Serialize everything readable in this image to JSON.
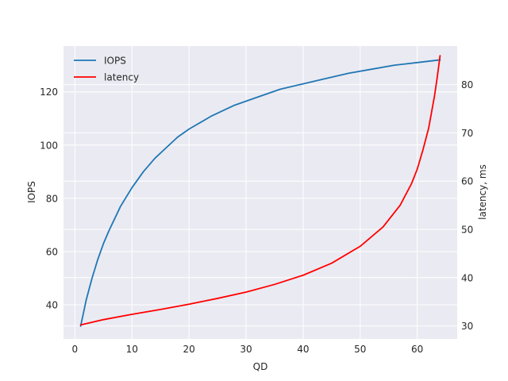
{
  "chart_data": {
    "type": "line",
    "title": "",
    "xlabel": "QD",
    "ylabel": "IOPS",
    "y2label": "latency, ms",
    "xlim": [
      -2,
      67
    ],
    "ylim": [
      27.2,
      137.2
    ],
    "y2lim": [
      27.3,
      88.0
    ],
    "xticks": [
      0,
      10,
      20,
      30,
      40,
      50,
      60
    ],
    "yticks": [
      40,
      60,
      80,
      100,
      120
    ],
    "y2ticks": [
      30,
      40,
      50,
      60,
      70,
      80
    ],
    "grid": true,
    "legend": "top-left",
    "series": [
      {
        "name": "IOPS",
        "axis": "left",
        "color": "#1f77b4",
        "x": [
          1,
          2,
          3,
          4,
          5,
          6,
          8,
          10,
          12,
          14,
          16,
          18,
          20,
          24,
          28,
          32,
          36,
          40,
          44,
          48,
          52,
          56,
          60,
          64
        ],
        "y": [
          32,
          42,
          50,
          57,
          63,
          68,
          77,
          84,
          90,
          95,
          99,
          103,
          106,
          111,
          115,
          118,
          121,
          123,
          125,
          127,
          128.5,
          130,
          131,
          132
        ]
      },
      {
        "name": "latency",
        "axis": "right",
        "color": "#ff0000",
        "x": [
          1,
          5,
          10,
          15,
          20,
          25,
          30,
          35,
          40,
          45,
          50,
          54,
          57,
          59,
          60,
          61,
          62,
          63,
          63.5,
          64
        ],
        "y": [
          30.2,
          31.3,
          32.4,
          33.4,
          34.5,
          35.7,
          37.0,
          38.6,
          40.5,
          43.0,
          46.5,
          50.5,
          55.0,
          59.5,
          62.5,
          66.5,
          71.0,
          77.5,
          81.5,
          86.0
        ]
      }
    ]
  }
}
